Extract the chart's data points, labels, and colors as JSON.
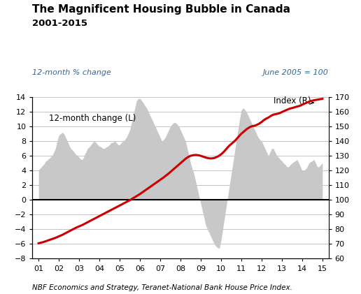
{
  "title_line1": "The Magnificent Housing Bubble in Canada",
  "title_line2": "2001-2015",
  "left_axis_label": "12-month % change",
  "right_axis_label": "June 2005 = 100",
  "footer": "NBF Economics and Strategy, Teranet-National Bank House Price Index.",
  "x_ticks": [
    "01",
    "02",
    "03",
    "04",
    "05",
    "06",
    "07",
    "08",
    "09",
    "10",
    "11",
    "12",
    "13",
    "14",
    "15"
  ],
  "left_ylim": [
    -8,
    14
  ],
  "right_ylim": [
    60,
    170
  ],
  "left_yticks": [
    -8,
    -6,
    -4,
    -2,
    0,
    2,
    4,
    6,
    8,
    10,
    12,
    14
  ],
  "right_yticks": [
    60,
    70,
    80,
    90,
    100,
    110,
    120,
    130,
    140,
    150,
    160,
    170
  ],
  "bar_color": "#c8c8c8",
  "line_color": "#cc0000",
  "x_values": [
    0,
    0.083,
    0.167,
    0.25,
    0.333,
    0.417,
    0.5,
    0.583,
    0.667,
    0.75,
    0.833,
    0.917,
    1,
    1.083,
    1.167,
    1.25,
    1.333,
    1.417,
    1.5,
    1.583,
    1.667,
    1.75,
    1.833,
    1.917,
    2,
    2.083,
    2.167,
    2.25,
    2.333,
    2.417,
    2.5,
    2.583,
    2.667,
    2.75,
    2.833,
    2.917,
    3,
    3.083,
    3.167,
    3.25,
    3.333,
    3.417,
    3.5,
    3.583,
    3.667,
    3.75,
    3.833,
    3.917,
    4,
    4.083,
    4.167,
    4.25,
    4.333,
    4.417,
    4.5,
    4.583,
    4.667,
    4.75,
    4.833,
    4.917,
    5,
    5.083,
    5.167,
    5.25,
    5.333,
    5.417,
    5.5,
    5.583,
    5.667,
    5.75,
    5.833,
    5.917,
    6,
    6.083,
    6.167,
    6.25,
    6.333,
    6.417,
    6.5,
    6.583,
    6.667,
    6.75,
    6.833,
    6.917,
    7,
    7.083,
    7.167,
    7.25,
    7.333,
    7.417,
    7.5,
    7.583,
    7.667,
    7.75,
    7.833,
    7.917,
    8,
    8.083,
    8.167,
    8.25,
    8.333,
    8.417,
    8.5,
    8.583,
    8.667,
    8.75,
    8.833,
    8.917,
    9,
    9.083,
    9.167,
    9.25,
    9.333,
    9.417,
    9.5,
    9.583,
    9.667,
    9.75,
    9.833,
    9.917,
    10,
    10.083,
    10.167,
    10.25,
    10.333,
    10.417,
    10.5,
    10.583,
    10.667,
    10.75,
    10.833,
    10.917,
    11,
    11.083,
    11.167,
    11.25,
    11.333,
    11.417,
    11.5,
    11.583,
    11.667,
    11.75,
    11.833,
    11.917,
    12,
    12.083,
    12.167,
    12.25,
    12.333,
    12.417,
    12.5,
    12.583,
    12.667,
    12.75,
    12.833,
    12.917,
    13,
    13.083,
    13.167,
    13.25,
    13.333,
    13.417,
    13.5,
    13.583,
    13.667,
    13.75,
    13.833,
    13.917,
    14
  ],
  "bar_values": [
    4.1,
    4.3,
    4.6,
    4.8,
    5.2,
    5.4,
    5.6,
    5.8,
    6.0,
    6.5,
    7.0,
    8.0,
    8.8,
    9.0,
    9.2,
    9.0,
    8.5,
    8.0,
    7.5,
    7.0,
    6.8,
    6.5,
    6.2,
    6.0,
    5.8,
    5.5,
    5.5,
    6.0,
    6.5,
    7.0,
    7.2,
    7.5,
    7.8,
    8.0,
    7.8,
    7.5,
    7.3,
    7.2,
    7.0,
    7.0,
    7.2,
    7.3,
    7.5,
    7.8,
    7.8,
    8.0,
    7.8,
    7.5,
    7.5,
    7.8,
    8.0,
    8.2,
    8.5,
    9.0,
    9.5,
    10.5,
    11.5,
    12.5,
    13.5,
    13.8,
    13.8,
    13.5,
    13.2,
    12.8,
    12.5,
    12.0,
    11.5,
    11.0,
    10.5,
    10.0,
    9.5,
    9.0,
    8.5,
    8.0,
    8.2,
    8.5,
    9.0,
    9.5,
    10.0,
    10.3,
    10.5,
    10.5,
    10.3,
    10.0,
    9.5,
    9.0,
    8.5,
    8.0,
    7.0,
    6.0,
    5.0,
    4.2,
    3.5,
    2.5,
    1.5,
    0.5,
    -0.5,
    -1.5,
    -2.5,
    -3.5,
    -4.0,
    -4.5,
    -5.0,
    -5.5,
    -6.0,
    -6.3,
    -6.5,
    -6.6,
    -5.5,
    -4.0,
    -2.5,
    -1.0,
    0.5,
    2.0,
    3.5,
    5.0,
    6.5,
    8.0,
    9.5,
    11.0,
    12.2,
    12.5,
    12.3,
    12.0,
    11.5,
    11.0,
    10.5,
    10.0,
    9.5,
    9.0,
    8.5,
    8.2,
    8.0,
    7.5,
    7.0,
    6.5,
    6.0,
    6.5,
    7.0,
    7.0,
    6.5,
    6.0,
    5.8,
    5.5,
    5.3,
    5.0,
    4.8,
    4.5,
    4.5,
    4.8,
    5.0,
    5.2,
    5.3,
    5.5,
    5.0,
    4.5,
    4.0,
    4.0,
    4.2,
    4.5,
    5.0,
    5.2,
    5.3,
    5.5,
    5.0,
    4.5,
    4.5,
    4.8,
    5.0
  ],
  "line_values": [
    70.5,
    70.8,
    71.1,
    71.4,
    71.8,
    72.2,
    72.6,
    73.0,
    73.4,
    73.8,
    74.2,
    74.7,
    75.2,
    75.7,
    76.2,
    76.8,
    77.4,
    78.0,
    78.6,
    79.2,
    79.8,
    80.4,
    81.0,
    81.5,
    82.0,
    82.5,
    83.0,
    83.6,
    84.2,
    84.8,
    85.4,
    86.0,
    86.6,
    87.2,
    87.8,
    88.4,
    89.0,
    89.6,
    90.2,
    90.8,
    91.4,
    92.0,
    92.6,
    93.2,
    93.8,
    94.4,
    95.0,
    95.6,
    96.2,
    96.8,
    97.4,
    98.0,
    98.6,
    99.2,
    99.8,
    100.5,
    101.2,
    101.9,
    102.6,
    103.3,
    104.0,
    104.8,
    105.6,
    106.4,
    107.2,
    108.0,
    108.8,
    109.6,
    110.4,
    111.2,
    112.0,
    112.8,
    113.6,
    114.4,
    115.3,
    116.2,
    117.1,
    118.0,
    119.0,
    120.0,
    121.0,
    122.0,
    123.0,
    124.0,
    125.0,
    126.0,
    127.0,
    128.0,
    128.8,
    129.5,
    130.0,
    130.3,
    130.5,
    130.6,
    130.5,
    130.3,
    130.0,
    129.6,
    129.2,
    128.8,
    128.5,
    128.3,
    128.2,
    128.3,
    128.5,
    129.0,
    129.5,
    130.2,
    131.0,
    132.0,
    133.2,
    134.5,
    135.8,
    137.0,
    138.0,
    139.0,
    140.0,
    141.2,
    142.5,
    143.8,
    145.0,
    146.0,
    147.0,
    148.0,
    148.8,
    149.5,
    150.0,
    150.3,
    150.5,
    151.0,
    151.5,
    152.2,
    153.0,
    154.0,
    154.8,
    155.5,
    156.0,
    156.8,
    157.5,
    158.0,
    158.3,
    158.5,
    158.8,
    159.2,
    159.8,
    160.3,
    160.8,
    161.3,
    161.8,
    162.2,
    162.5,
    162.8,
    163.2,
    163.5,
    163.8,
    164.2,
    164.8,
    165.3,
    165.8,
    166.3,
    166.8,
    167.2,
    167.5,
    167.8,
    168.0,
    168.2,
    168.4,
    168.6,
    168.8
  ]
}
